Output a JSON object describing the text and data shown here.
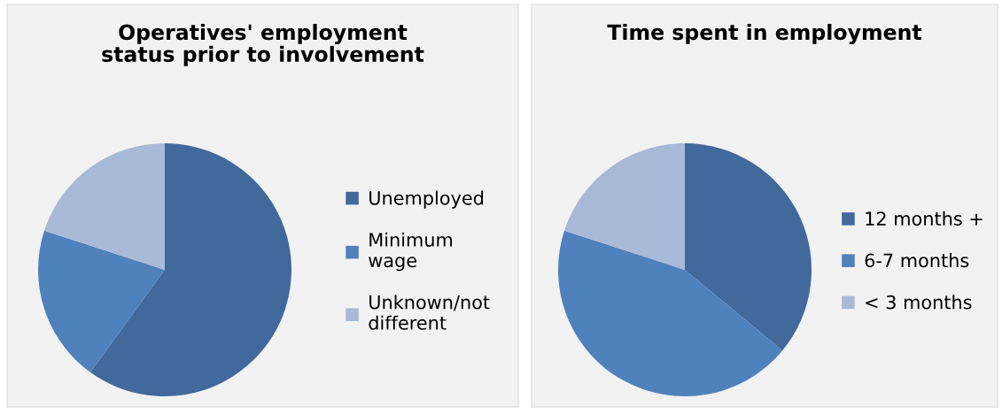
{
  "chart_data": [
    {
      "type": "pie",
      "title": "Operatives' employment status prior to involvement",
      "categories": [
        "Unemployed",
        "Minimum wage",
        "Unknown/not different"
      ],
      "values": [
        60,
        20,
        20
      ],
      "colors": [
        "#41699b",
        "#4f81bd",
        "#a9b9d8"
      ],
      "legend": "right"
    },
    {
      "type": "pie",
      "title": "Time spent in employment",
      "categories": [
        "12 months +",
        "6-7 months",
        "< 3 months"
      ],
      "values": [
        36,
        44,
        20
      ],
      "colors": [
        "#41699b",
        "#4f81bd",
        "#a9b9d8"
      ],
      "legend": "right"
    }
  ]
}
